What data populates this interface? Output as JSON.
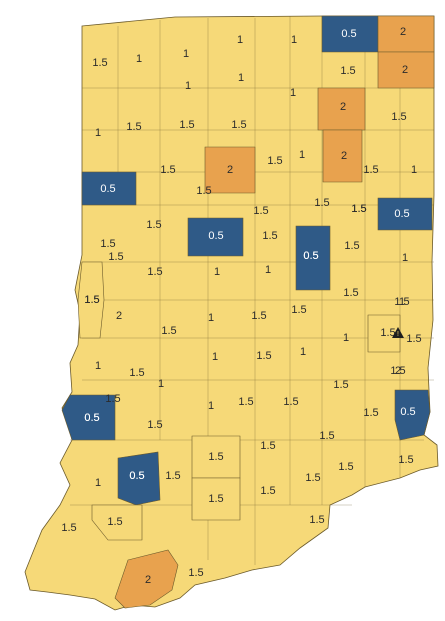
{
  "map": {
    "colors": {
      "v05": "#2f5a87",
      "v1": "#f6d978",
      "v15": "#f6d978",
      "v2": "#e8a24e",
      "border": "#6b5a2a"
    },
    "warning_icon": "warning-triangle-icon",
    "labels": [
      {
        "id": "c01",
        "text": "1.5",
        "value": 1.5
      },
      {
        "id": "c02",
        "text": "1",
        "value": 1
      },
      {
        "id": "c03",
        "text": "1",
        "value": 1
      },
      {
        "id": "c04",
        "text": "1",
        "value": 1
      },
      {
        "id": "c05",
        "text": "1",
        "value": 1
      },
      {
        "id": "c06",
        "text": "0.5",
        "value": 0.5
      },
      {
        "id": "c07",
        "text": "2",
        "value": 2
      },
      {
        "id": "c08",
        "text": "1",
        "value": 1
      },
      {
        "id": "c09",
        "text": "1",
        "value": 1
      },
      {
        "id": "c10",
        "text": "1",
        "value": 1
      },
      {
        "id": "c11",
        "text": "1.5",
        "value": 1.5
      },
      {
        "id": "c12",
        "text": "2",
        "value": 2
      },
      {
        "id": "c13",
        "text": "1",
        "value": 1
      },
      {
        "id": "c14",
        "text": "1.5",
        "value": 1.5
      },
      {
        "id": "c15",
        "text": "1.5",
        "value": 1.5
      },
      {
        "id": "c16",
        "text": "1.5",
        "value": 1.5
      },
      {
        "id": "c17",
        "text": "2",
        "value": 2
      },
      {
        "id": "c18",
        "text": "1.5",
        "value": 1.5
      },
      {
        "id": "c19",
        "text": "1.5",
        "value": 1.5
      },
      {
        "id": "c20",
        "text": "2",
        "value": 2
      },
      {
        "id": "c21",
        "text": "1.5",
        "value": 1.5
      },
      {
        "id": "c22",
        "text": "1",
        "value": 1
      },
      {
        "id": "c23",
        "text": "2",
        "value": 2
      },
      {
        "id": "c24",
        "text": "1.5",
        "value": 1.5
      },
      {
        "id": "c25",
        "text": "1",
        "value": 1
      },
      {
        "id": "c26",
        "text": "0.5",
        "value": 0.5
      },
      {
        "id": "c27",
        "text": "1.5",
        "value": 1.5
      },
      {
        "id": "c28",
        "text": "1.5",
        "value": 1.5
      },
      {
        "id": "c29",
        "text": "1.5",
        "value": 1.5
      },
      {
        "id": "c30",
        "text": "0.5",
        "value": 0.5
      },
      {
        "id": "c31",
        "text": "1.5",
        "value": 1.5
      },
      {
        "id": "c32",
        "text": "1.5",
        "value": 1.5
      },
      {
        "id": "c33",
        "text": "0.5",
        "value": 0.5
      },
      {
        "id": "c34",
        "text": "0.5",
        "value": 0.5
      },
      {
        "id": "c35",
        "text": "1.5",
        "value": 1.5
      },
      {
        "id": "c36",
        "text": "1.5",
        "value": 1.5
      },
      {
        "id": "c37",
        "text": "1.5",
        "value": 1.5
      },
      {
        "id": "c38",
        "text": "1.5",
        "value": 1.5
      },
      {
        "id": "c39",
        "text": "1",
        "value": 1
      },
      {
        "id": "c40",
        "text": "0.5",
        "value": 0.5
      },
      {
        "id": "c41",
        "text": "1.5",
        "value": 1.5
      },
      {
        "id": "c42",
        "text": "1.5",
        "value": 1.5
      },
      {
        "id": "c43",
        "text": "1",
        "value": 1
      },
      {
        "id": "c44",
        "text": "1",
        "value": 1
      },
      {
        "id": "c45",
        "text": "1.5",
        "value": 1.5
      },
      {
        "id": "c46",
        "text": "1.5",
        "value": 1.5
      },
      {
        "id": "c47",
        "text": "1.5",
        "value": 1.5
      },
      {
        "id": "c48",
        "text": "1.5",
        "value": 1.5
      },
      {
        "id": "c49",
        "text": "1",
        "value": 1
      },
      {
        "id": "c50",
        "text": "2",
        "value": 2
      },
      {
        "id": "c51",
        "text": "1.5",
        "value": 1.5
      },
      {
        "id": "c52",
        "text": "1",
        "value": 1
      },
      {
        "id": "c53",
        "text": "1.5",
        "value": 1.5
      },
      {
        "id": "c54",
        "text": "1.5",
        "value": 1.5
      },
      {
        "id": "c55",
        "text": "1.5",
        "value": 1.5
      },
      {
        "id": "c56",
        "text": "1.5",
        "value": 1.5
      },
      {
        "id": "c57",
        "text": "1",
        "value": 1
      },
      {
        "id": "c58",
        "text": "1",
        "value": 1
      },
      {
        "id": "c59",
        "text": "1.5",
        "value": 1.5
      },
      {
        "id": "c60",
        "text": "1",
        "value": 1
      },
      {
        "id": "c61",
        "text": "0.5",
        "value": 0.5
      },
      {
        "id": "c62",
        "text": "1",
        "value": 1
      },
      {
        "id": "c63",
        "text": "1.5",
        "value": 1.5
      },
      {
        "id": "c64",
        "text": "1",
        "value": 1
      },
      {
        "id": "c65",
        "text": "1.5",
        "value": 1.5
      },
      {
        "id": "c66",
        "text": "1.5",
        "value": 1.5
      },
      {
        "id": "c67",
        "text": "1.5",
        "value": 1.5
      },
      {
        "id": "c68",
        "text": "2",
        "value": 2
      },
      {
        "id": "c69",
        "text": "0.5",
        "value": 0.5
      },
      {
        "id": "c70",
        "text": "1.5",
        "value": 1.5
      },
      {
        "id": "c71",
        "text": "0.5",
        "value": 0.5
      },
      {
        "id": "c72",
        "text": "1",
        "value": 1
      },
      {
        "id": "c73",
        "text": "1.5",
        "value": 1.5
      },
      {
        "id": "c74",
        "text": "1.5",
        "value": 1.5
      },
      {
        "id": "c75",
        "text": "1.5",
        "value": 1.5
      },
      {
        "id": "c76",
        "text": "0.5",
        "value": 0.5
      },
      {
        "id": "c77",
        "text": "1",
        "value": 1
      },
      {
        "id": "c78",
        "text": "1.5",
        "value": 1.5
      },
      {
        "id": "c79",
        "text": "1.5",
        "value": 1.5
      },
      {
        "id": "c80",
        "text": "1.5",
        "value": 1.5
      },
      {
        "id": "c81",
        "text": "0.5",
        "value": 0.5
      },
      {
        "id": "c82",
        "text": "1.5",
        "value": 1.5
      },
      {
        "id": "c83",
        "text": "1.5",
        "value": 1.5
      },
      {
        "id": "c84",
        "text": "1.5",
        "value": 1.5
      },
      {
        "id": "c85",
        "text": "1.5",
        "value": 1.5
      },
      {
        "id": "c86",
        "text": "1.5",
        "value": 1.5
      },
      {
        "id": "c87",
        "text": "1.5",
        "value": 1.5
      },
      {
        "id": "c88",
        "text": "2",
        "value": 2
      },
      {
        "id": "c89",
        "text": "1.5",
        "value": 1.5
      },
      {
        "id": "c90",
        "text": "1.5",
        "value": 1.5
      },
      {
        "id": "c91",
        "text": "1.5",
        "value": 1.5
      },
      {
        "id": "c92",
        "text": "1.5",
        "value": 1.5
      }
    ]
  }
}
